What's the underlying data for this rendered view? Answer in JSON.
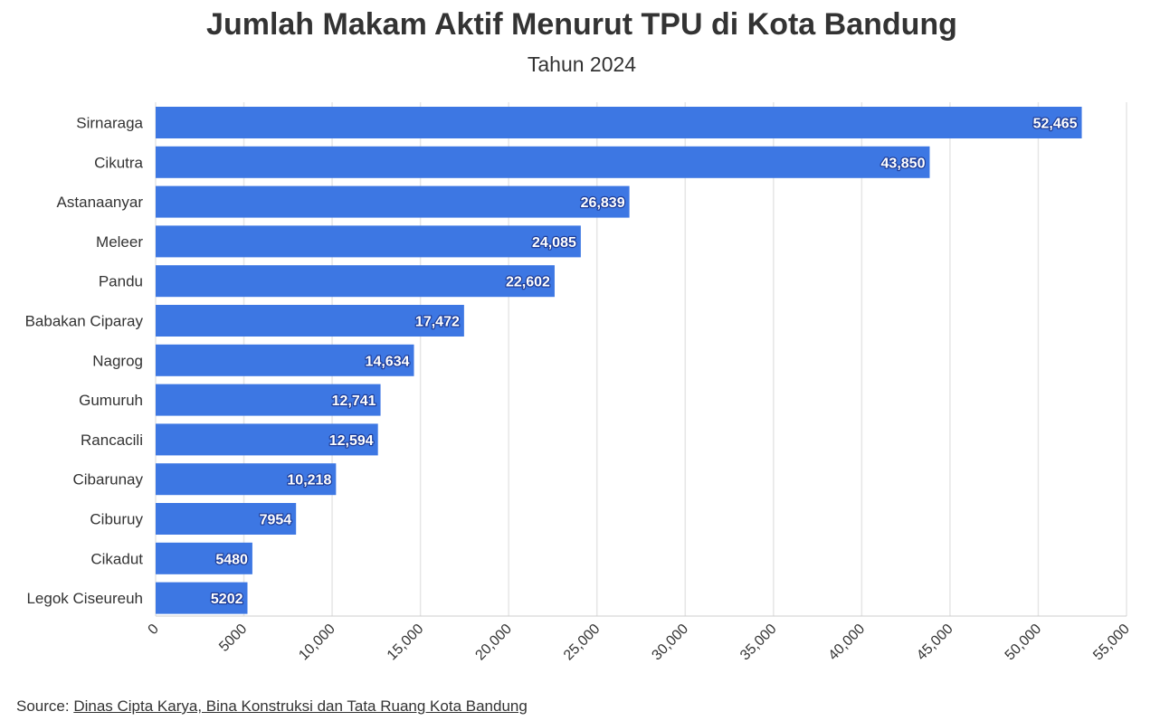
{
  "chart_data": {
    "type": "bar",
    "orientation": "horizontal",
    "title": "Jumlah Makam Aktif Menurut TPU di Kota Bandung",
    "subtitle": "Tahun 2024",
    "categories": [
      "Sirnaraga",
      "Cikutra",
      "Astanaanyar",
      "Meleer",
      "Pandu",
      "Babakan Ciparay",
      "Nagrog",
      "Gumuruh",
      "Rancacili",
      "Cibarunay",
      "Ciburuy",
      "Cikadut",
      "Legok Ciseureuh"
    ],
    "values": [
      52465,
      43850,
      26839,
      24085,
      22602,
      17472,
      14634,
      12741,
      12594,
      10218,
      7954,
      5480,
      5202
    ],
    "value_labels": [
      "52,465",
      "43,850",
      "26,839",
      "24,085",
      "22,602",
      "17,472",
      "14,634",
      "12,741",
      "12,594",
      "10,218",
      "7954",
      "5480",
      "5202"
    ],
    "xlim": [
      0,
      55000
    ],
    "x_ticks": [
      0,
      5000,
      10000,
      15000,
      20000,
      25000,
      30000,
      35000,
      40000,
      45000,
      50000,
      55000
    ],
    "x_tick_labels": [
      "0",
      "5000",
      "10,000",
      "15,000",
      "20,000",
      "25,000",
      "30,000",
      "35,000",
      "40,000",
      "45,000",
      "50,000",
      "55,000"
    ],
    "xlabel": "",
    "ylabel": "",
    "grid": "vertical",
    "bar_color": "#3d77e3",
    "grid_color": "#e6e6e6",
    "text_color": "#333333"
  },
  "source": {
    "prefix": "Source: ",
    "link_text": "Dinas Cipta Karya, Bina Konstruksi dan Tata Ruang Kota Bandung"
  }
}
